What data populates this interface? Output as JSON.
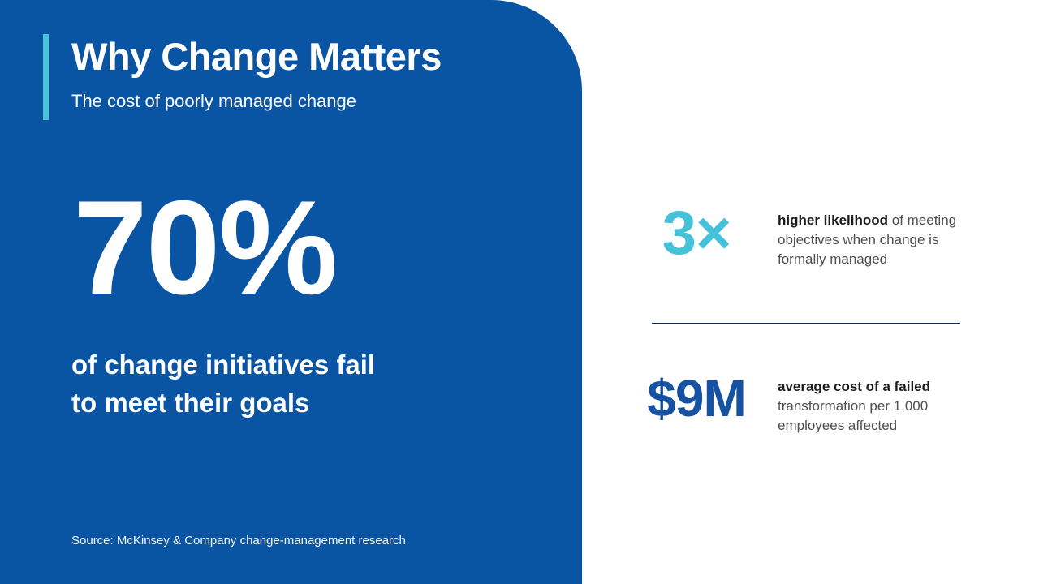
{
  "slide": {
    "title": "Why Change Matters",
    "subtitle": "The cost of poorly managed change",
    "big_stat": {
      "value": "70%",
      "description_line1": "of change initiatives fail",
      "description_line2": "to meet their goals"
    },
    "source": "Source: McKinsey & Company change-management research",
    "stats": [
      {
        "value": "3×",
        "bold_text": "higher likelihood",
        "regular_text": " of meeting objectives when change is formally managed",
        "color": "#45c2d8"
      },
      {
        "value": "$9M",
        "bold_text": "average cost of a failed",
        "regular_text": " transformation per 1,000 employees affected",
        "color": "#1552a3"
      }
    ],
    "colors": {
      "panel_blue": "#0a54a4",
      "accent_teal": "#4cc3d9",
      "stat_teal": "#45c2d8",
      "stat_blue": "#1552a3",
      "divider_navy": "#16294e",
      "text_dark": "#1c1c1c",
      "text_gray": "#4f4f4f",
      "text_white": "#ffffff"
    }
  }
}
